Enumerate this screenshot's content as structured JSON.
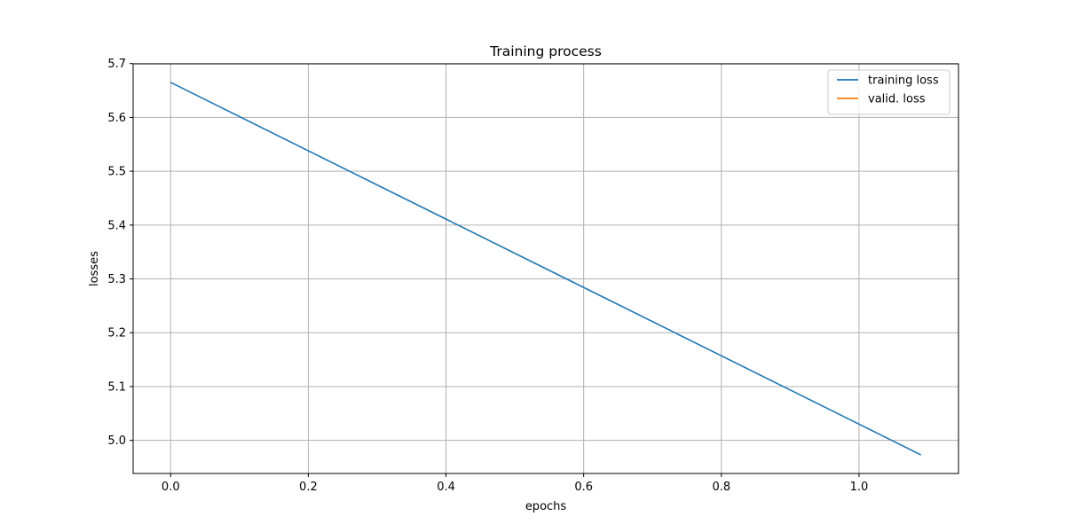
{
  "chart_data": {
    "type": "line",
    "title": "Training process",
    "xlabel": "epochs",
    "ylabel": "losses",
    "xlim": [
      -0.0545,
      1.1445
    ],
    "ylim": [
      4.9385,
      5.6995
    ],
    "xticks": [
      0.0,
      0.2,
      0.4,
      0.6,
      0.8,
      1.0
    ],
    "yticks": [
      5.0,
      5.1,
      5.2,
      5.3,
      5.4,
      5.5,
      5.6,
      5.7
    ],
    "grid": true,
    "legend_position": "top-right",
    "series": [
      {
        "name": "training loss",
        "color": "#1f77b4",
        "x": [
          0.0,
          1.09
        ],
        "y": [
          5.665,
          4.973
        ]
      },
      {
        "name": "valid. loss",
        "color": "#ff7f0e",
        "x": [],
        "y": []
      }
    ]
  }
}
